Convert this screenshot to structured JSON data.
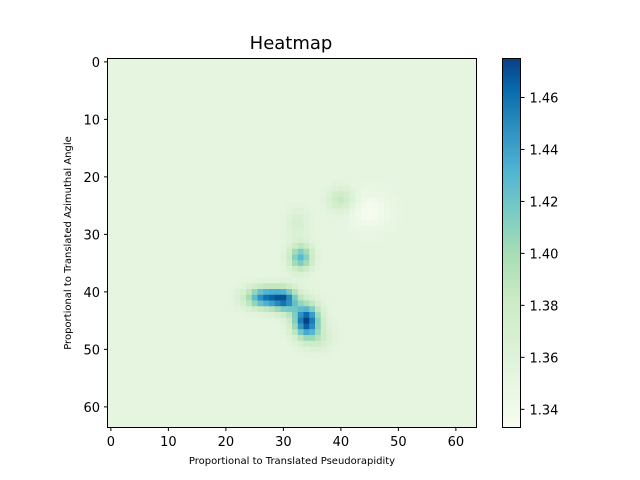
{
  "chart_data": {
    "type": "heatmap",
    "title": "Heatmap",
    "xlabel": "Proportional to Translated Pseudorapidity",
    "ylabel": "Proportional to Translated Azimuthal Angle",
    "grid_size": [
      64,
      64
    ],
    "xlim": [
      -0.5,
      63.5
    ],
    "ylim": [
      63.5,
      -0.5
    ],
    "x_ticks": [
      0,
      10,
      20,
      30,
      40,
      50,
      60
    ],
    "y_ticks": [
      0,
      10,
      20,
      30,
      40,
      50,
      60
    ],
    "background_value": 1.352,
    "colormap": "GnBu",
    "colorbar": {
      "min": 1.333,
      "max": 1.475,
      "ticks": [
        1.34,
        1.36,
        1.38,
        1.4,
        1.42,
        1.44,
        1.46
      ],
      "tick_labels": [
        "1.34",
        "1.36",
        "1.38",
        "1.40",
        "1.42",
        "1.44",
        "1.46"
      ]
    },
    "features": [
      {
        "x": 40,
        "y": 24,
        "peak": 1.385,
        "spread_x": 1.6,
        "spread_y": 1.4
      },
      {
        "x": 45,
        "y": 26,
        "peak": 1.333,
        "spread_x": 2.2,
        "spread_y": 2.0
      },
      {
        "x": 32.5,
        "y": 28,
        "peak": 1.37,
        "spread_x": 1.5,
        "spread_y": 1.8
      },
      {
        "x": 33,
        "y": 34,
        "peak": 1.428,
        "spread_x": 1.4,
        "spread_y": 1.6
      },
      {
        "x": 27,
        "y": 41,
        "peak": 1.455,
        "spread_x": 2.4,
        "spread_y": 1.3
      },
      {
        "x": 30.5,
        "y": 41.5,
        "peak": 1.43,
        "spread_x": 1.5,
        "spread_y": 1.5
      },
      {
        "x": 34,
        "y": 45,
        "peak": 1.475,
        "spread_x": 1.6,
        "spread_y": 2.0
      },
      {
        "x": 36,
        "y": 48,
        "peak": 1.375,
        "spread_x": 1.8,
        "spread_y": 1.5
      }
    ]
  }
}
